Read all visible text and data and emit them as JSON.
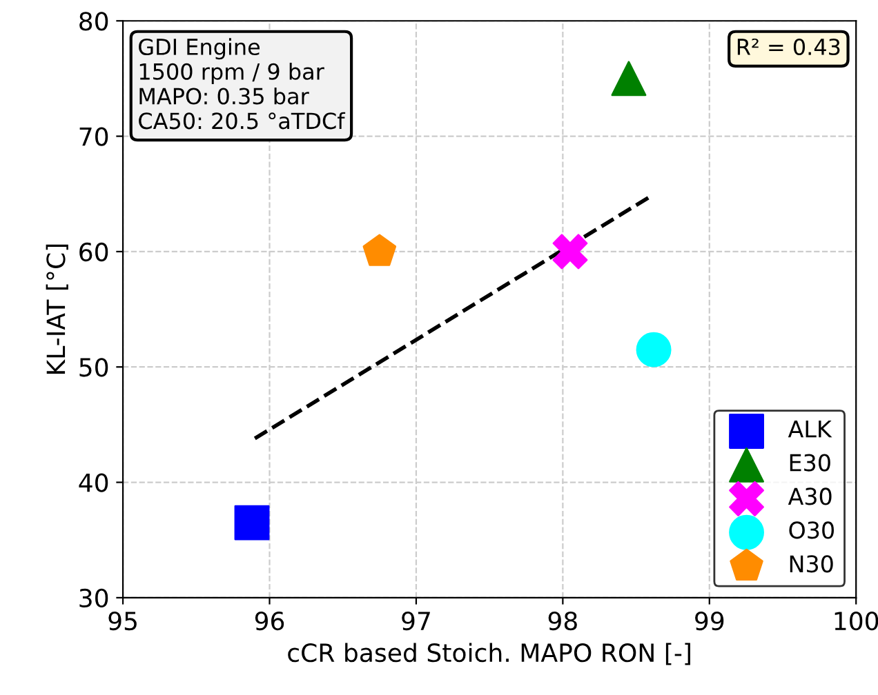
{
  "chart_data": {
    "type": "scatter",
    "xlabel": "cCR based Stoich. MAPO RON [-]",
    "ylabel": "KL-IAT [°C]",
    "xlim": [
      95,
      100
    ],
    "xticks": [
      95,
      96,
      97,
      98,
      99,
      100
    ],
    "ylim": [
      30,
      80
    ],
    "yticks": [
      30,
      40,
      50,
      60,
      70,
      80
    ],
    "grid": true,
    "legend": "bottom right",
    "series": [
      {
        "name": "ALK",
        "color": "#0000ff",
        "marker": "square",
        "x": [
          95.88
        ],
        "values": [
          36.5
        ]
      },
      {
        "name": "E30",
        "color": "#008000",
        "marker": "triangle",
        "x": [
          98.45
        ],
        "values": [
          75
        ]
      },
      {
        "name": "A30",
        "color": "#ff00ff",
        "marker": "cross",
        "x": [
          98.05
        ],
        "values": [
          60
        ]
      },
      {
        "name": "O30",
        "color": "#00ffff",
        "marker": "circle",
        "x": [
          98.62
        ],
        "values": [
          51.5
        ]
      },
      {
        "name": "N30",
        "color": "#ff8c00",
        "x": [
          96.75
        ],
        "values": [
          60
        ]
      },
      {
        "type": "line",
        "color": "#000000",
        "line_style": "dashed",
        "marker": "none",
        "x": [
          95.9,
          98.6
        ],
        "values": [
          43.8,
          64.8
        ]
      }
    ],
    "annotations": [
      "GDI Engine\n1500 rpm / 9 bar\nMAPO: 0.35 bar\nCA50: 20.5 °aTDCf",
      "R² = 0.43"
    ]
  }
}
